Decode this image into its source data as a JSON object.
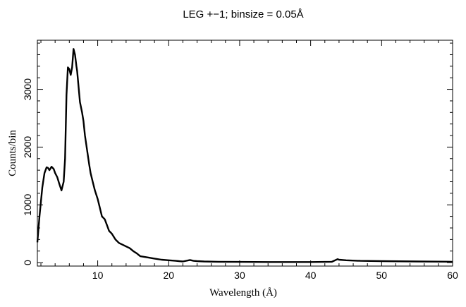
{
  "chart_data": {
    "type": "line",
    "title": "LEG +−1; binsize = 0.05Å",
    "xlabel": "Wavelength (Å)",
    "ylabel": "Counts/bin",
    "xlim": [
      1.5,
      60
    ],
    "ylim": [
      -60,
      3850
    ],
    "xticks": [
      10,
      20,
      30,
      40,
      50,
      60
    ],
    "xtick_labels": [
      "10",
      "20",
      "30",
      "40",
      "50",
      "60"
    ],
    "yticks": [
      0,
      1000,
      2000,
      3000
    ],
    "ytick_labels": [
      "0",
      "1000",
      "2000",
      "3000"
    ],
    "grid": false,
    "line_color": "#000000",
    "series": [
      {
        "x": [
          1.5,
          1.8,
          2.0,
          2.2,
          2.5,
          2.8,
          3.0,
          3.2,
          3.5,
          3.8,
          4.0,
          4.3,
          4.6,
          4.9,
          5.2,
          5.4,
          5.6,
          5.8,
          6.0,
          6.2,
          6.4,
          6.6,
          6.8,
          6.9,
          7.0,
          7.1,
          7.3,
          7.5,
          7.8,
          8.0,
          8.2,
          8.5,
          8.8,
          9.0,
          9.3,
          9.6,
          10.0,
          10.3,
          10.6,
          11.0,
          11.3,
          11.6,
          12.0,
          12.5,
          13.0,
          13.5,
          14.0,
          14.5,
          15.0,
          15.5,
          16.0,
          17.0,
          18.0,
          19.0,
          20.0,
          21.0,
          22.0,
          23.0,
          23.5,
          24.0,
          25.0,
          27.0,
          30.0,
          35.0,
          40.0,
          43.0,
          43.8,
          44.0,
          45.0,
          47.0,
          50.0,
          55.0,
          60.0
        ],
        "y": [
          350,
          800,
          1050,
          1300,
          1550,
          1650,
          1640,
          1600,
          1660,
          1620,
          1550,
          1480,
          1360,
          1250,
          1400,
          1800,
          2900,
          3380,
          3350,
          3250,
          3380,
          3700,
          3600,
          3500,
          3400,
          3320,
          3050,
          2780,
          2600,
          2450,
          2200,
          1950,
          1700,
          1550,
          1400,
          1250,
          1100,
          950,
          800,
          750,
          650,
          550,
          500,
          400,
          340,
          310,
          280,
          250,
          200,
          160,
          110,
          90,
          70,
          50,
          40,
          30,
          20,
          45,
          30,
          25,
          20,
          15,
          12,
          10,
          10,
          15,
          60,
          50,
          40,
          30,
          25,
          20,
          15
        ]
      }
    ]
  }
}
